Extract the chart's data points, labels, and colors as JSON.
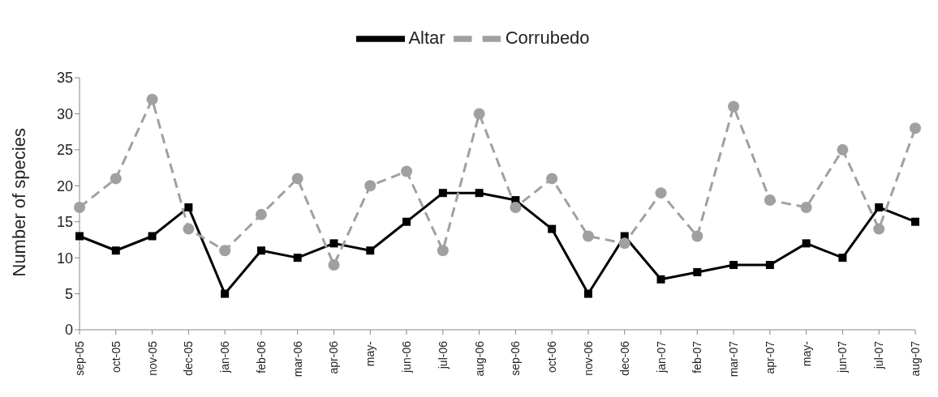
{
  "chart_data": {
    "type": "line",
    "ylabel": "Number of species",
    "categories": [
      "sep-05",
      "oct-05",
      "nov-05",
      "dec-05",
      "jan-06",
      "feb-06",
      "mar-06",
      "apr-06",
      "may-",
      "jun-06",
      "jul-06",
      "aug-06",
      "sep-06",
      "oct-06",
      "nov-06",
      "dec-06",
      "jan-07",
      "feb-07",
      "mar-07",
      "apr-07",
      "may-",
      "jun-07",
      "jul-07",
      "aug-07"
    ],
    "series": [
      {
        "name": "Altar",
        "color": "#000000",
        "marker": "square",
        "line_style": "solid",
        "values": [
          13,
          11,
          13,
          17,
          5,
          11,
          10,
          12,
          11,
          15,
          19,
          19,
          18,
          14,
          5,
          13,
          7,
          8,
          9,
          9,
          12,
          10,
          17,
          15
        ]
      },
      {
        "name": "Corrubedo",
        "color": "#a0a0a0",
        "marker": "circle",
        "line_style": "dashed",
        "values": [
          17,
          21,
          32,
          14,
          11,
          16,
          21,
          9,
          20,
          22,
          11,
          30,
          17,
          21,
          13,
          12,
          19,
          13,
          31,
          18,
          17,
          25,
          14,
          28
        ]
      }
    ],
    "ylim": [
      0,
      35
    ],
    "yticks": [
      0,
      5,
      10,
      15,
      20,
      25,
      30,
      35
    ],
    "grid": false,
    "legend": "top"
  }
}
